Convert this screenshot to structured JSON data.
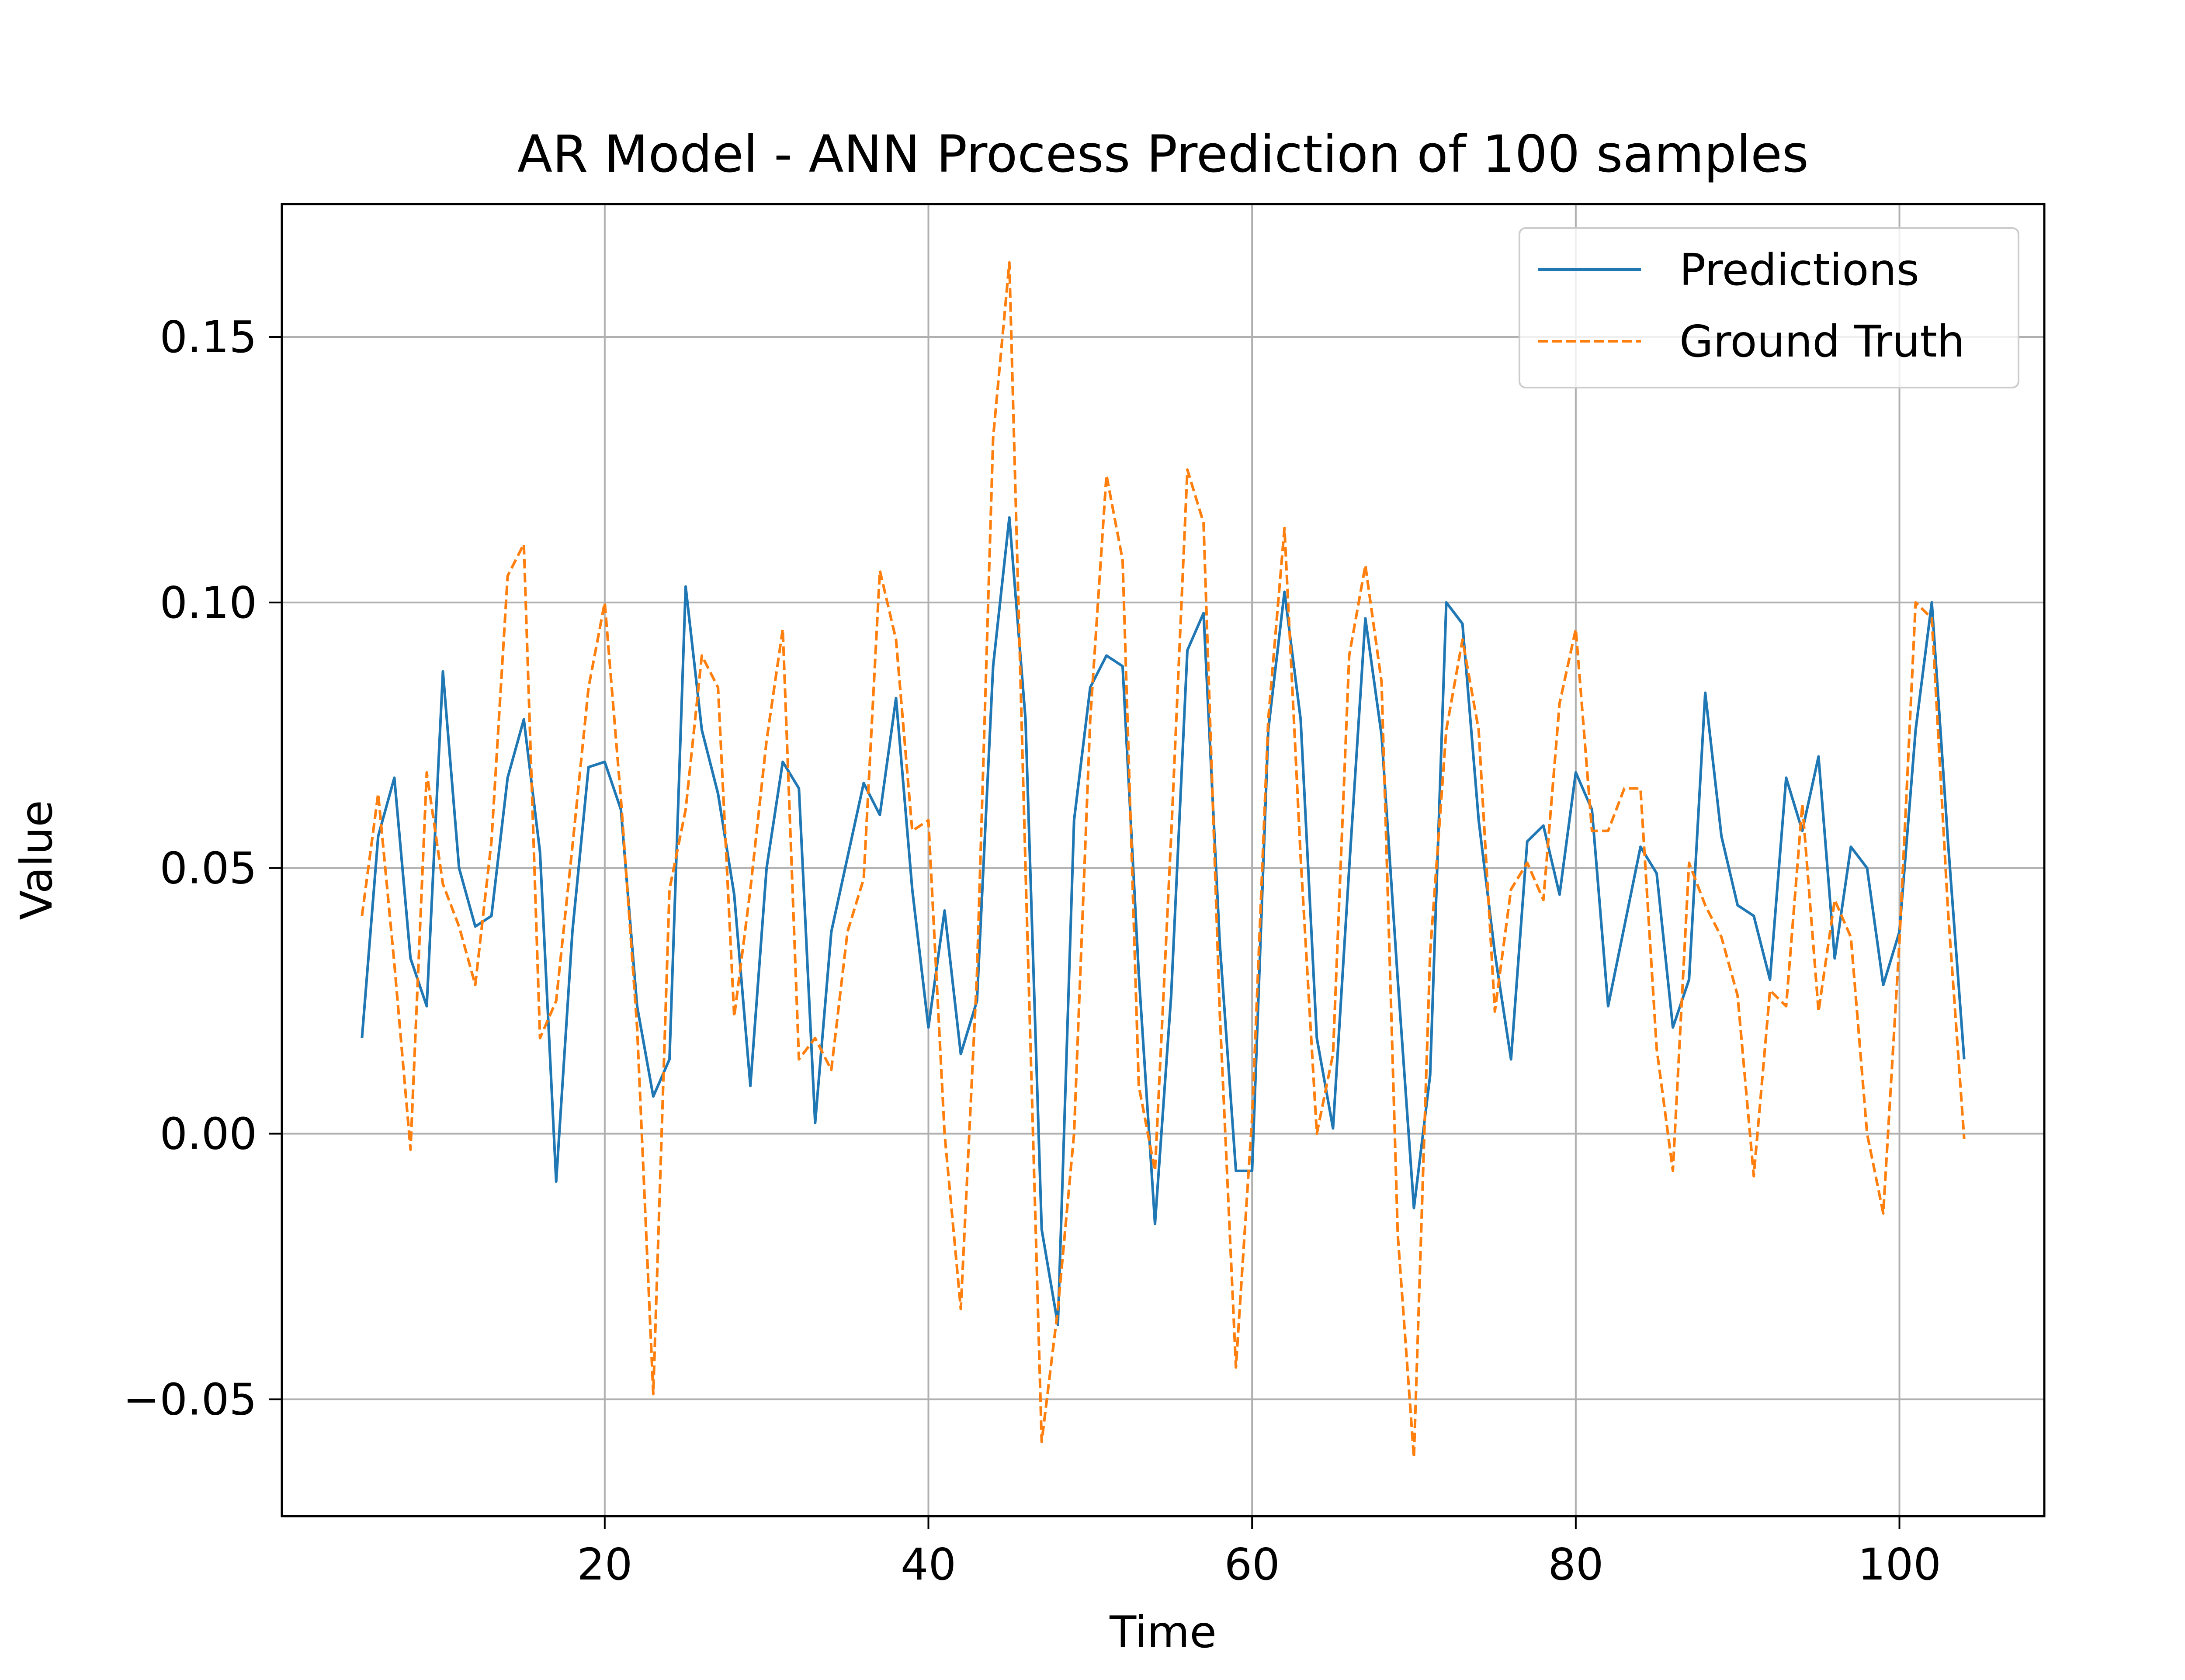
{
  "chart_data": {
    "type": "line",
    "title": "AR Model - ANN Process Prediction of 100 samples",
    "xlabel": "Time",
    "ylabel": "Value",
    "xlim": [
      0.05,
      108.95
    ],
    "ylim": [
      -0.072,
      0.175
    ],
    "xticks": [
      20,
      40,
      60,
      80,
      100
    ],
    "yticks": [
      -0.05,
      0.0,
      0.05,
      0.1,
      0.15
    ],
    "ytick_labels": [
      "−0.05",
      "0.00",
      "0.05",
      "0.10",
      "0.15"
    ],
    "xtick_labels": [
      "20",
      "40",
      "60",
      "80",
      "100"
    ],
    "grid": true,
    "legend_position": "top-right",
    "x": [
      5,
      6,
      7,
      8,
      9,
      10,
      11,
      12,
      13,
      14,
      15,
      16,
      17,
      18,
      19,
      20,
      21,
      22,
      23,
      24,
      25,
      26,
      27,
      28,
      29,
      30,
      31,
      32,
      33,
      34,
      35,
      36,
      37,
      38,
      39,
      40,
      41,
      42,
      43,
      44,
      45,
      46,
      47,
      48,
      49,
      50,
      51,
      52,
      53,
      54,
      55,
      56,
      57,
      58,
      59,
      60,
      61,
      62,
      63,
      64,
      65,
      66,
      67,
      68,
      69,
      70,
      71,
      72,
      73,
      74,
      75,
      76,
      77,
      78,
      79,
      80,
      81,
      82,
      83,
      84,
      85,
      86,
      87,
      88,
      89,
      90,
      91,
      92,
      93,
      94,
      95,
      96,
      97,
      98,
      99,
      100,
      101,
      102,
      103,
      104
    ],
    "series": [
      {
        "name": "Predictions",
        "color": "#1f77b4",
        "style": "solid",
        "values": [
          0.018,
          0.056,
          0.067,
          0.033,
          0.024,
          0.087,
          0.05,
          0.039,
          0.041,
          0.067,
          0.078,
          0.053,
          -0.009,
          0.038,
          0.069,
          0.07,
          0.061,
          0.024,
          0.007,
          0.014,
          0.103,
          0.076,
          0.064,
          0.045,
          0.009,
          0.05,
          0.07,
          0.065,
          0.002,
          0.038,
          0.052,
          0.066,
          0.06,
          0.082,
          0.046,
          0.02,
          0.042,
          0.015,
          0.025,
          0.088,
          0.116,
          0.078,
          -0.018,
          -0.036,
          0.059,
          0.084,
          0.09,
          0.088,
          0.03,
          -0.017,
          0.026,
          0.091,
          0.098,
          0.036,
          -0.007,
          -0.007,
          0.076,
          0.102,
          0.078,
          0.018,
          0.001,
          0.05,
          0.097,
          0.075,
          0.029,
          -0.014,
          0.011,
          0.1,
          0.096,
          0.059,
          0.034,
          0.014,
          0.055,
          0.058,
          0.045,
          0.068,
          0.061,
          0.024,
          0.039,
          0.054,
          0.049,
          0.02,
          0.029,
          0.083,
          0.056,
          0.043,
          0.041,
          0.029,
          0.067,
          0.057,
          0.071,
          0.033,
          0.054,
          0.05,
          0.028,
          0.038,
          0.076,
          0.1,
          0.055,
          0.014
        ]
      },
      {
        "name": "Ground Truth",
        "color": "#ff7f0e",
        "style": "dashed",
        "values": [
          0.041,
          0.064,
          0.032,
          -0.003,
          0.068,
          0.047,
          0.039,
          0.028,
          0.055,
          0.105,
          0.111,
          0.018,
          0.025,
          0.054,
          0.084,
          0.1,
          0.063,
          0.02,
          -0.049,
          0.046,
          0.061,
          0.09,
          0.084,
          0.022,
          0.046,
          0.074,
          0.095,
          0.014,
          0.018,
          0.012,
          0.038,
          0.048,
          0.106,
          0.093,
          0.057,
          0.059,
          0.0,
          -0.033,
          0.03,
          0.131,
          0.164,
          0.05,
          -0.058,
          -0.033,
          0.0,
          0.078,
          0.124,
          0.108,
          0.009,
          -0.007,
          0.056,
          0.125,
          0.115,
          0.023,
          -0.044,
          0.003,
          0.078,
          0.114,
          0.052,
          0.0,
          0.015,
          0.09,
          0.107,
          0.085,
          -0.019,
          -0.061,
          0.034,
          0.076,
          0.093,
          0.076,
          0.023,
          0.046,
          0.051,
          0.044,
          0.081,
          0.095,
          0.057,
          0.057,
          0.065,
          0.065,
          0.016,
          -0.007,
          0.051,
          0.043,
          0.037,
          0.026,
          -0.008,
          0.027,
          0.024,
          0.062,
          0.023,
          0.044,
          0.037,
          0.0,
          -0.015,
          0.036,
          0.1,
          0.097,
          0.042,
          -0.001
        ]
      }
    ]
  }
}
